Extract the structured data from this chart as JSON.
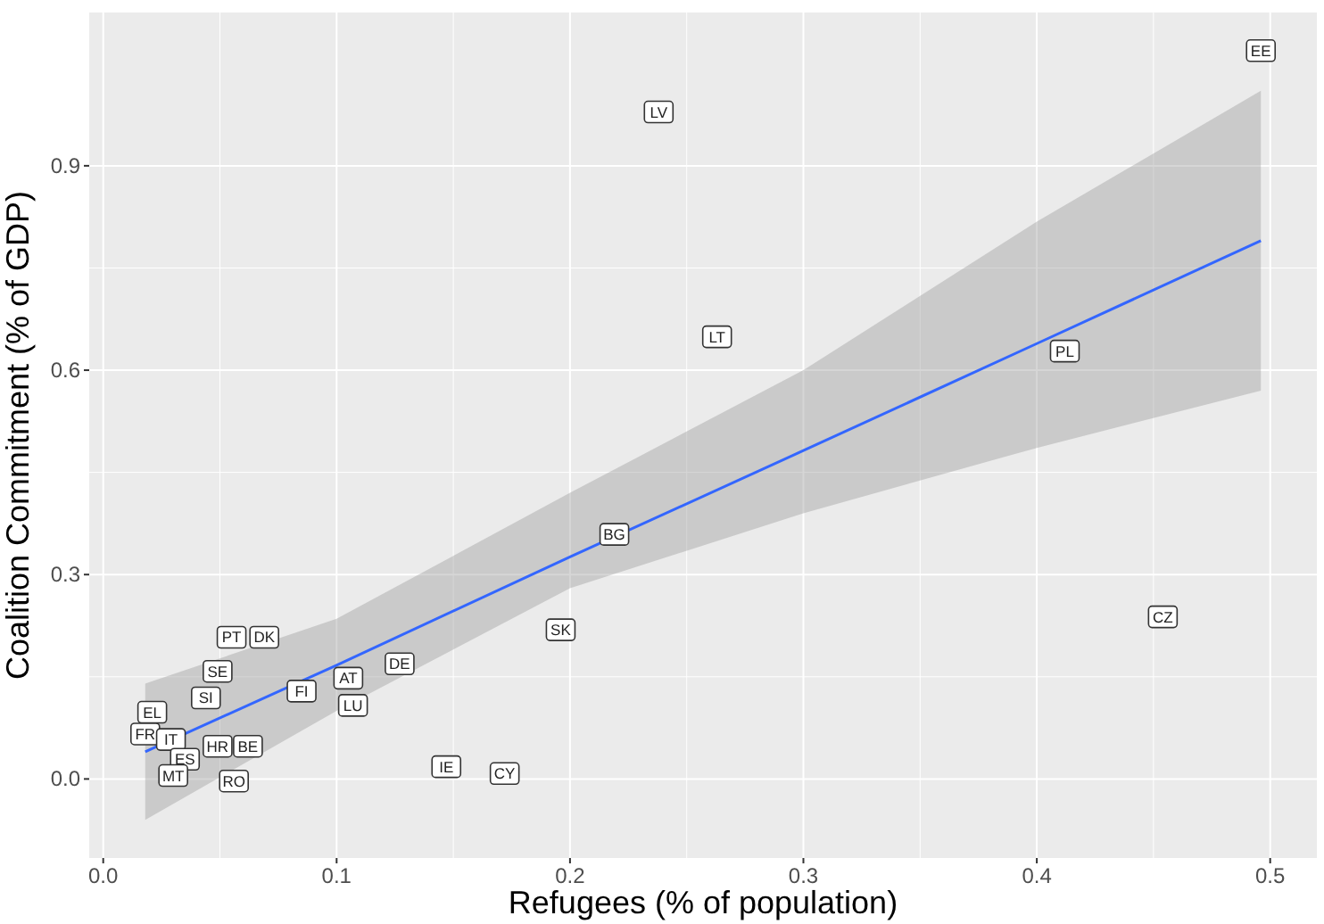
{
  "chart_data": {
    "type": "scatter",
    "xlabel": "Refugees (% of population)",
    "ylabel": "Coalition Commitment (% of GDP)",
    "xlim": [
      -0.006,
      0.52
    ],
    "ylim": [
      -0.116,
      1.125
    ],
    "xticks": [
      {
        "value": 0,
        "label": "0.0"
      },
      0.1,
      0.2,
      0.3,
      0.4,
      0.5
    ],
    "yticks": [
      {
        "value": 0,
        "label": "0.0"
      },
      0.3,
      0.6,
      0.9
    ],
    "grid": true,
    "series": [
      {
        "type": "scatter",
        "color": "#ffffff",
        "x": [
          0.496,
          0.238,
          0.263,
          0.412,
          0.219,
          0.454,
          0.196,
          0.055,
          0.069,
          0.049,
          0.127,
          0.044,
          0.085,
          0.105,
          0.107,
          0.021,
          0.018,
          0.029,
          0.062,
          0.049,
          0.035,
          0.03,
          0.056,
          0.147,
          0.172
        ],
        "values": [
          1.069,
          0.979,
          0.649,
          0.628,
          0.359,
          0.238,
          0.219,
          0.208,
          0.208,
          0.158,
          0.169,
          0.119,
          0.129,
          0.148,
          0.108,
          0.098,
          0.066,
          0.058,
          0.048,
          0.048,
          0.029,
          0.005,
          -0.003,
          0.018,
          0.008
        ]
      },
      {
        "type": "line",
        "color": "#3366ff",
        "x": [
          0.018,
          0.1,
          0.2,
          0.3,
          0.4,
          0.496
        ],
        "values": [
          0.04,
          0.167,
          0.326,
          0.482,
          0.639,
          0.79
        ],
        "lower": [
          -0.06,
          0.1,
          0.28,
          0.39,
          0.486,
          0.57
        ],
        "upper": [
          0.14,
          0.235,
          0.42,
          0.6,
          0.818,
          1.01
        ]
      }
    ],
    "annotations": [
      {
        "text": "EE",
        "x": 0.496,
        "y": 1.069
      },
      {
        "text": "LV",
        "x": 0.238,
        "y": 0.979
      },
      {
        "text": "LT",
        "x": 0.263,
        "y": 0.649
      },
      {
        "text": "PL",
        "x": 0.412,
        "y": 0.628
      },
      {
        "text": "BG",
        "x": 0.219,
        "y": 0.359
      },
      {
        "text": "CZ",
        "x": 0.454,
        "y": 0.238
      },
      {
        "text": "SK",
        "x": 0.196,
        "y": 0.219
      },
      {
        "text": "PT",
        "x": 0.055,
        "y": 0.208
      },
      {
        "text": "DK",
        "x": 0.069,
        "y": 0.208
      },
      {
        "text": "SE",
        "x": 0.049,
        "y": 0.158
      },
      {
        "text": "DE",
        "x": 0.127,
        "y": 0.169
      },
      {
        "text": "SI",
        "x": 0.044,
        "y": 0.119
      },
      {
        "text": "FI",
        "x": 0.085,
        "y": 0.129
      },
      {
        "text": "AT",
        "x": 0.105,
        "y": 0.148
      },
      {
        "text": "LU",
        "x": 0.107,
        "y": 0.108
      },
      {
        "text": "EL",
        "x": 0.021,
        "y": 0.098
      },
      {
        "text": "FR",
        "x": 0.018,
        "y": 0.066
      },
      {
        "text": "IT",
        "x": 0.029,
        "y": 0.058
      },
      {
        "text": "BE",
        "x": 0.062,
        "y": 0.048
      },
      {
        "text": "HR",
        "x": 0.049,
        "y": 0.048
      },
      {
        "text": "ES",
        "x": 0.035,
        "y": 0.029
      },
      {
        "text": "MT",
        "x": 0.03,
        "y": 0.005
      },
      {
        "text": "RO",
        "x": 0.056,
        "y": -0.003
      },
      {
        "text": "IE",
        "x": 0.147,
        "y": 0.018
      },
      {
        "text": "CY",
        "x": 0.172,
        "y": 0.008
      }
    ]
  }
}
